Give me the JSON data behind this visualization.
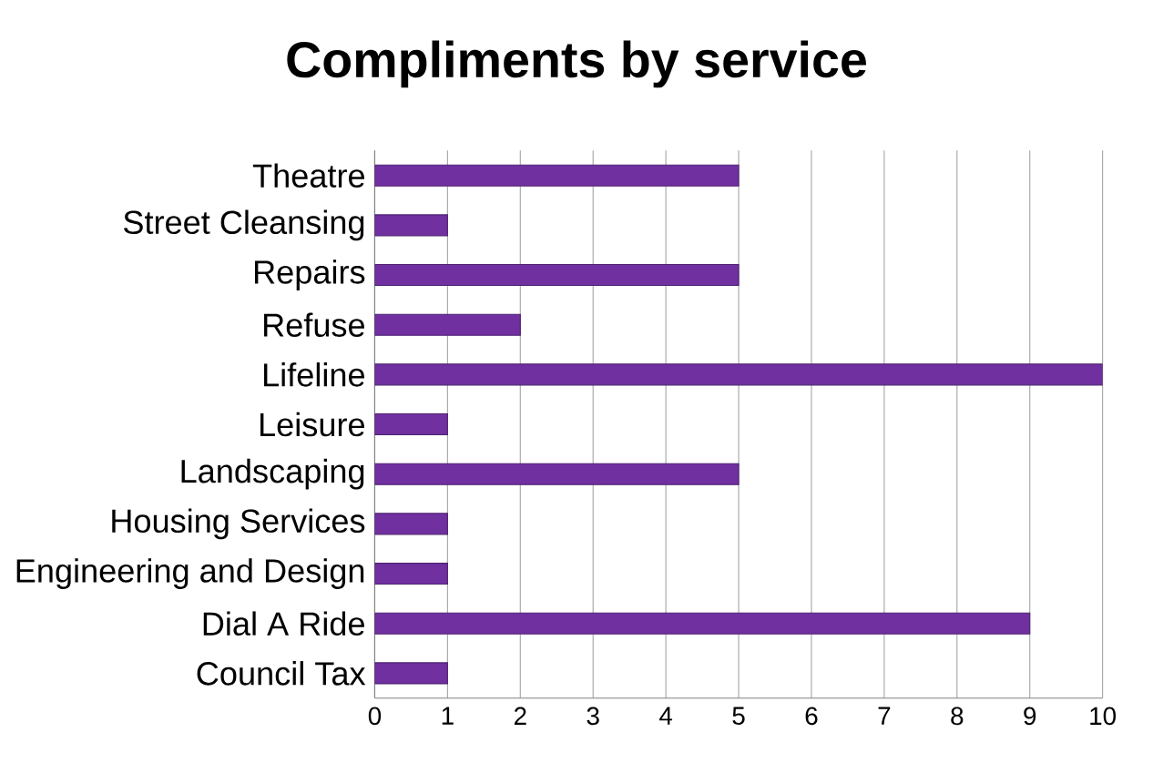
{
  "chart_data": {
    "type": "bar",
    "orientation": "horizontal",
    "title": "Compliments by service",
    "categories": [
      "Theatre",
      "Street Cleansing",
      "Repairs",
      "Refuse",
      "Lifeline",
      "Leisure",
      "Landscaping",
      "Housing Services",
      "Engineering and Design",
      "Dial A Ride",
      "Council Tax"
    ],
    "values": [
      5,
      1,
      5,
      2,
      10,
      1,
      5,
      1,
      1,
      9,
      1
    ],
    "color": "#7030a0",
    "xlim": [
      0,
      10
    ],
    "xticks": [
      0,
      1,
      2,
      3,
      4,
      5,
      6,
      7,
      8,
      9,
      10
    ],
    "grid": "x"
  }
}
